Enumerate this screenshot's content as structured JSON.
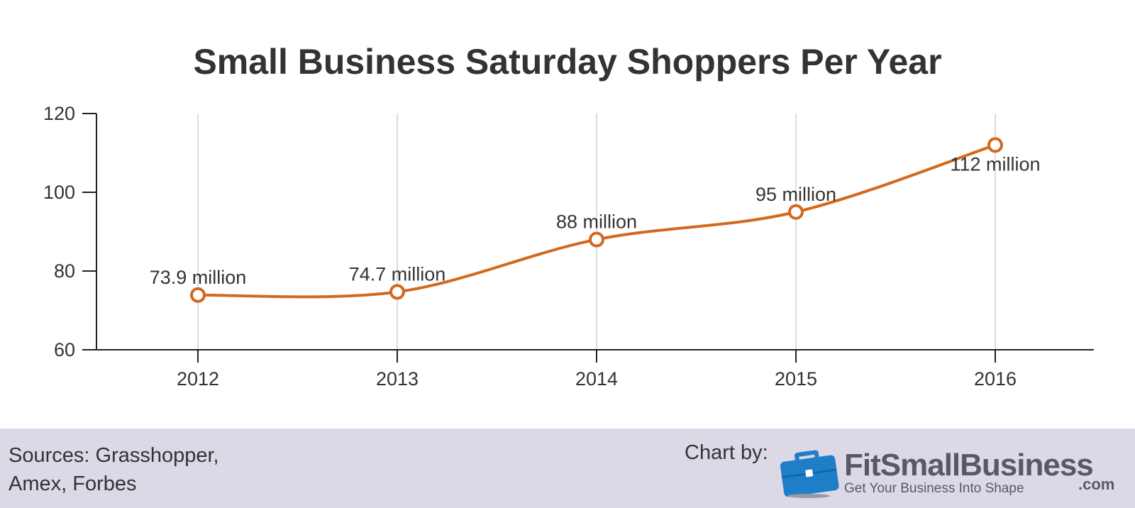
{
  "chart_data": {
    "type": "line",
    "title": "Small Business Saturday Shoppers Per Year",
    "categories": [
      "2012",
      "2013",
      "2014",
      "2015",
      "2016"
    ],
    "series": [
      {
        "values": [
          73.9,
          74.7,
          88,
          95,
          112
        ],
        "data_labels": [
          "73.9 million",
          "74.7 million",
          "88 million",
          "95 million",
          "112 million"
        ],
        "color": "#d2691e"
      }
    ],
    "yticks": [
      "60",
      "80",
      "100",
      "120"
    ],
    "ylim": [
      60,
      120
    ],
    "grid": "vertical",
    "line_style": "smooth"
  },
  "footer": {
    "sources_line1": "Sources: Grasshopper,",
    "sources_line2": "Amex, Forbes",
    "chart_by": "Chart by:",
    "logo_name": "FitSmallBusiness",
    "logo_tagline": "Get Your Business Into Shape",
    "logo_domain": ".com",
    "logo_icon": "briefcase-icon",
    "logo_color": "#1e7fc8"
  }
}
